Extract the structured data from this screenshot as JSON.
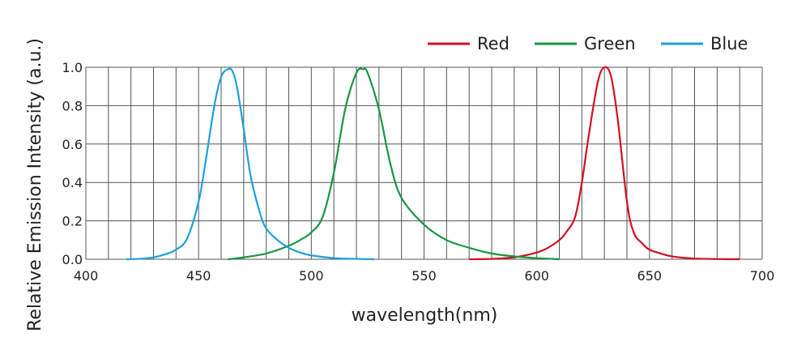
{
  "chart_data": {
    "type": "line",
    "xlabel": "wavelength(nm)",
    "ylabel": "Relative Emission Intensity (a.u.)",
    "xlim": [
      400,
      700
    ],
    "ylim": [
      0,
      1.0
    ],
    "x_ticks": [
      400,
      450,
      500,
      550,
      600,
      650,
      700
    ],
    "y_ticks": [
      "0.0",
      "0.2",
      "0.4",
      "0.6",
      "0.8",
      "1.0"
    ],
    "x_gridlines": [
      400,
      410,
      420,
      430,
      440,
      450,
      460,
      470,
      480,
      490,
      500,
      510,
      520,
      530,
      540,
      550,
      560,
      570,
      580,
      590,
      600,
      610,
      620,
      630,
      640,
      650,
      660,
      670,
      680,
      690,
      700
    ],
    "y_gridlines": [
      0,
      0.2,
      0.4,
      0.6,
      0.8,
      1.0
    ],
    "grid": true,
    "legend_position": "top-right",
    "series": [
      {
        "name": "Red",
        "color": "#d0121f",
        "x": [
          570,
          580,
          590,
          600,
          605,
          610,
          613,
          617,
          620,
          623,
          627,
          630,
          633,
          636,
          640,
          643,
          647,
          650,
          655,
          660,
          665,
          670,
          680,
          690
        ],
        "y": [
          0,
          0.002,
          0.01,
          0.035,
          0.06,
          0.1,
          0.14,
          0.22,
          0.4,
          0.64,
          0.92,
          1.0,
          0.95,
          0.72,
          0.3,
          0.14,
          0.08,
          0.05,
          0.03,
          0.015,
          0.008,
          0.004,
          0.001,
          0
        ]
      },
      {
        "name": "Green",
        "color": "#1a9641",
        "x": [
          463,
          470,
          480,
          490,
          495,
          500,
          505,
          510,
          515,
          520,
          523,
          525,
          530,
          535,
          540,
          550,
          560,
          570,
          580,
          590,
          600,
          610
        ],
        "y": [
          0,
          0.01,
          0.03,
          0.07,
          0.1,
          0.14,
          0.22,
          0.45,
          0.78,
          0.97,
          0.99,
          0.97,
          0.78,
          0.5,
          0.32,
          0.18,
          0.1,
          0.06,
          0.03,
          0.015,
          0.006,
          0
        ]
      },
      {
        "name": "Blue",
        "color": "#1ea0da",
        "x": [
          418,
          425,
          430,
          435,
          440,
          445,
          450,
          453,
          457,
          460,
          463,
          465,
          467,
          470,
          473,
          477,
          480,
          485,
          490,
          495,
          500,
          510,
          520,
          528
        ],
        "y": [
          0,
          0.003,
          0.01,
          0.025,
          0.05,
          0.11,
          0.3,
          0.5,
          0.8,
          0.95,
          0.99,
          0.98,
          0.9,
          0.68,
          0.44,
          0.25,
          0.16,
          0.1,
          0.06,
          0.035,
          0.02,
          0.006,
          0.002,
          0
        ]
      }
    ]
  }
}
